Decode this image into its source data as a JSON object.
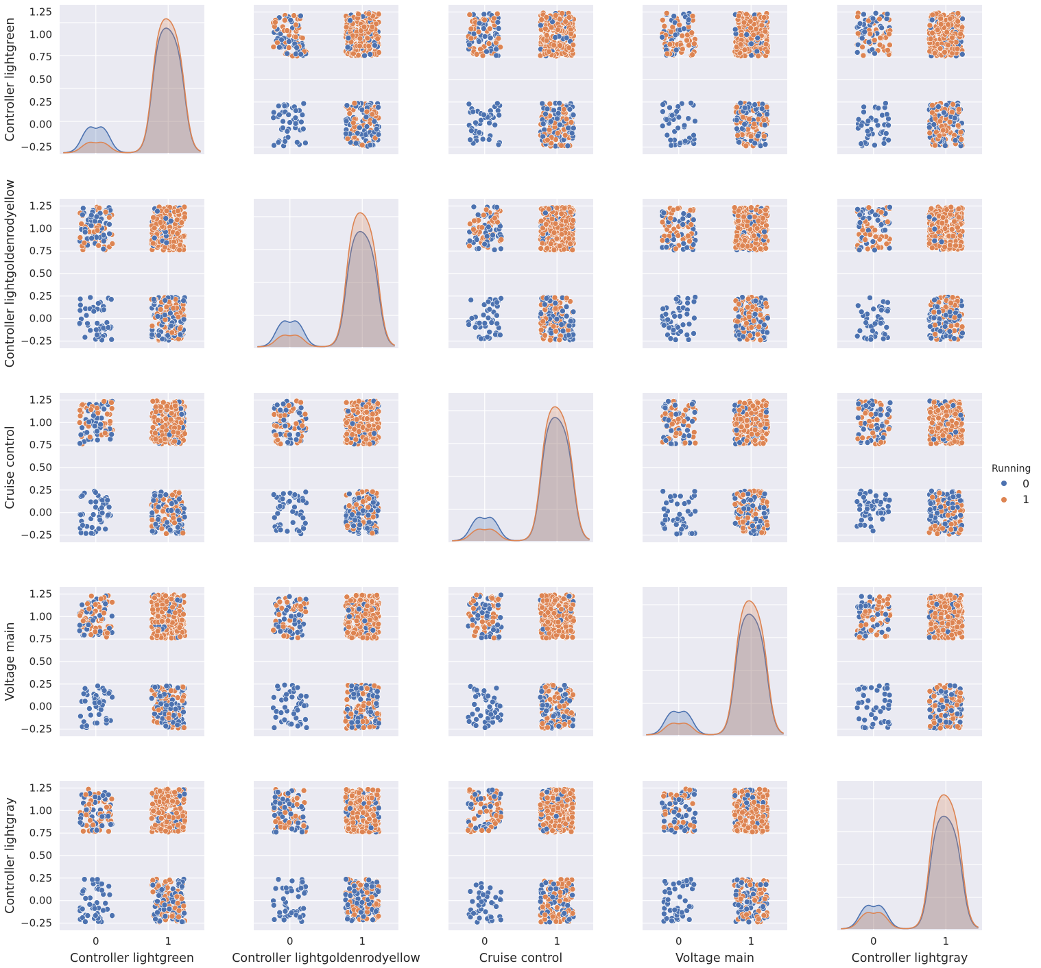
{
  "chart_data": {
    "type": "scatter",
    "layout": "pairplot",
    "variables": [
      "Controller lightgreen",
      "Controller lightgoldenrodyellow",
      "Cruise control",
      "Voltage main",
      "Controller lightgray"
    ],
    "hue": "Running",
    "hue_levels": [
      "0",
      "1"
    ],
    "colors": {
      "0": "#4c72b0",
      "1": "#dd8452"
    },
    "background": "#eaeaf2",
    "grid": true,
    "legend": {
      "title": "Running",
      "placement": "right-center",
      "labels": [
        "0",
        "1"
      ]
    },
    "ylim": [
      -0.33,
      1.33
    ],
    "xlim": [
      -0.5,
      1.5
    ],
    "y_ticks": [
      "1.25",
      "1.00",
      "0.75",
      "0.50",
      "0.25",
      "0.00",
      "−0.25"
    ],
    "y_tick_values": [
      1.25,
      1.0,
      0.75,
      0.5,
      0.25,
      0.0,
      -0.25
    ],
    "x_ticks": [
      "0",
      "1"
    ],
    "x_tick_values": [
      0,
      1
    ],
    "jitter": 0.25,
    "scatter_counts": {
      "group_0_0": 45,
      "group_0_1": 90,
      "group_1_0": 150,
      "group_1_1": 260
    },
    "diagonal": {
      "type": "kde",
      "peak_heights": [
        {
          "series_0": [
            0.22,
            0.93
          ],
          "series_1": [
            0.09,
            1.0
          ]
        },
        {
          "series_0": [
            0.22,
            0.86
          ],
          "series_1": [
            0.1,
            1.0
          ]
        },
        {
          "series_0": [
            0.2,
            0.92
          ],
          "series_1": [
            0.1,
            1.0
          ]
        },
        {
          "series_0": [
            0.2,
            0.9
          ],
          "series_1": [
            0.1,
            1.0
          ]
        },
        {
          "series_0": [
            0.2,
            0.84
          ],
          "series_1": [
            0.14,
            1.0
          ]
        }
      ]
    }
  }
}
